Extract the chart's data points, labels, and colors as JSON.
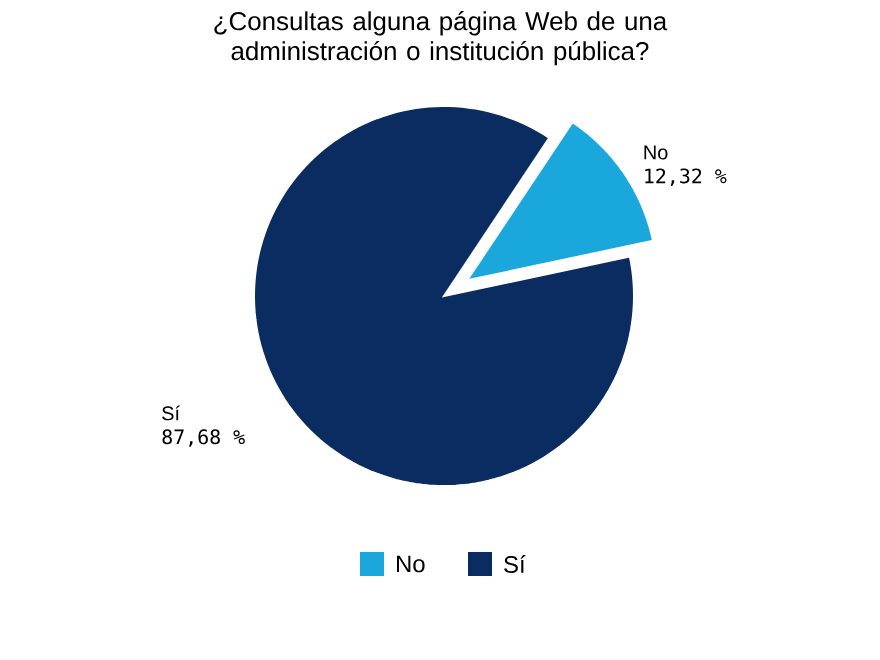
{
  "chart_data": {
    "type": "pie",
    "title": "¿Consultas alguna página Web de una administración o institución pública?",
    "categories": [
      "No",
      "Sí"
    ],
    "values": [
      12.32,
      87.68
    ],
    "colors": [
      "#1aa7dc",
      "#0b2c61"
    ],
    "value_labels": [
      "12,32 %",
      "87,68 %"
    ],
    "legend": "bottom"
  }
}
